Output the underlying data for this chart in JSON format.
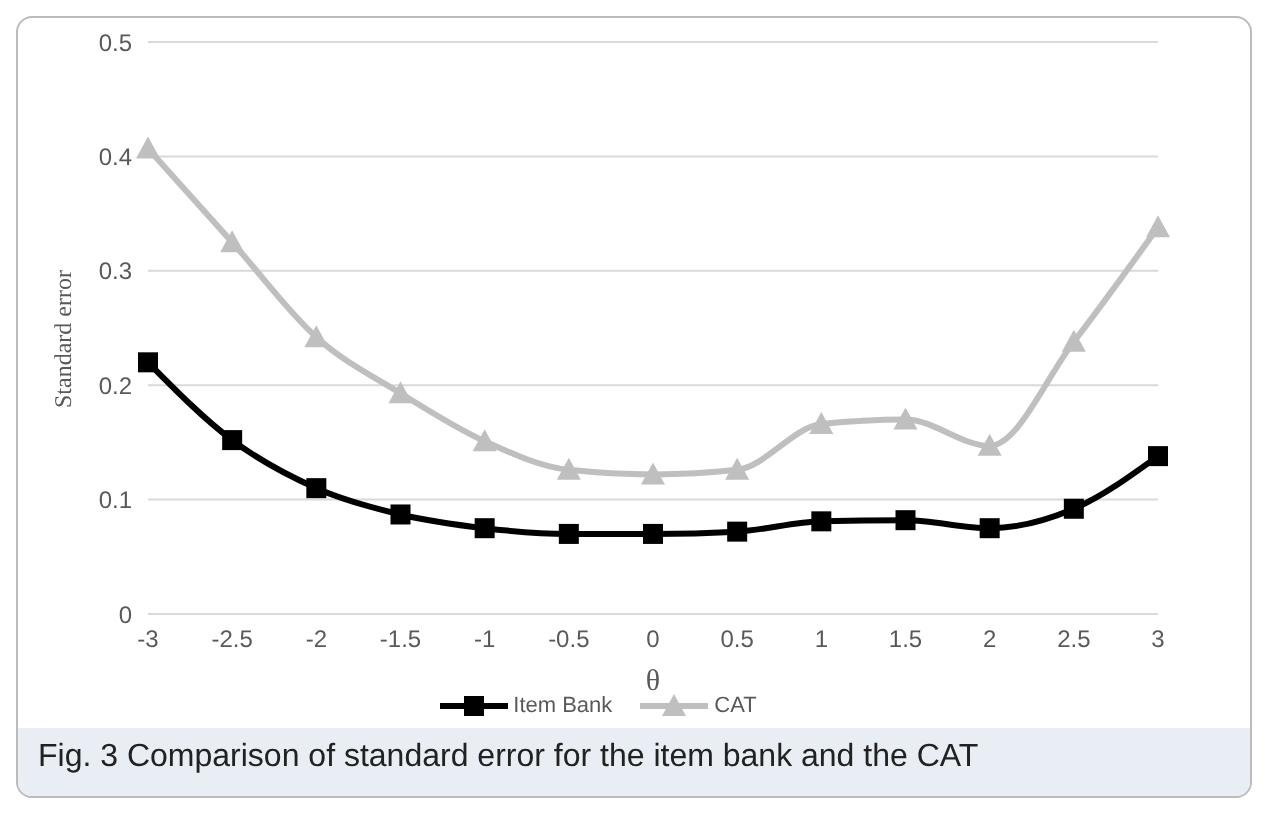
{
  "chart_data": {
    "type": "line",
    "xlabel": "θ",
    "ylabel": "Standard error",
    "categories": [
      "-3",
      "-2.5",
      "-2",
      "-1.5",
      "-1",
      "-0.5",
      "0",
      "0.5",
      "1",
      "1.5",
      "2",
      "2.5",
      "3"
    ],
    "series": [
      {
        "name": "Item Bank",
        "color": "#000000",
        "marker": "square",
        "values": [
          0.22,
          0.152,
          0.11,
          0.087,
          0.075,
          0.07,
          0.07,
          0.072,
          0.081,
          0.082,
          0.075,
          0.092,
          0.138
        ]
      },
      {
        "name": "CAT",
        "color": "#bfbfbf",
        "marker": "triangle",
        "values": [
          0.407,
          0.325,
          0.242,
          0.193,
          0.151,
          0.126,
          0.122,
          0.126,
          0.166,
          0.17,
          0.147,
          0.238,
          0.338
        ]
      }
    ],
    "ylim": [
      0,
      0.5
    ],
    "yticks": [
      0,
      0.1,
      0.2,
      0.3,
      0.4,
      0.5
    ],
    "grid": "y",
    "legend": "bottom",
    "annotations": [
      "Fig. 3 Comparison of standard error for the item bank and the CAT"
    ]
  }
}
